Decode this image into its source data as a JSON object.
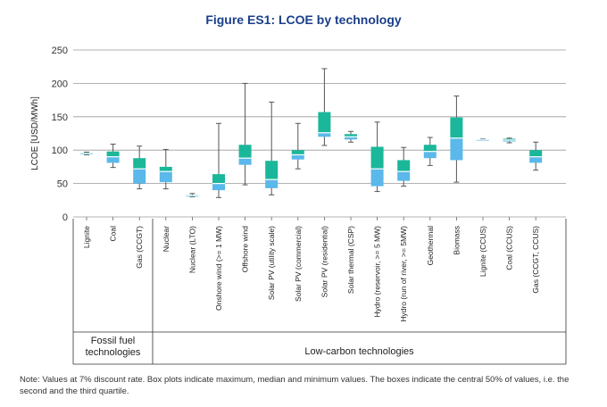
{
  "chart_data": {
    "type": "box",
    "title": "Figure ES1: LCOE by technology",
    "ylabel": "LCOE [USD/MWh]",
    "ylim": [
      0,
      250
    ],
    "yticks": [
      0,
      50,
      100,
      150,
      200,
      250
    ],
    "grid": true,
    "colors": {
      "upper_quartile": "#1bb79a",
      "lower_quartile": "#5ab8ea",
      "median_line": "#ffffff",
      "whisker": "#555555",
      "title": "#1b3f8a"
    },
    "categories": [
      "Lignite",
      "Coal",
      "Gas (CCGT)",
      "Nuclear",
      "Nuclear (LTO)",
      "Onshore wind (>= 1 MW)",
      "Offshore wind",
      "Solar PV (utility scale)",
      "Solar PV (commercial)",
      "Solar PV (residential)",
      "Solar thermal (CSP)",
      "Hydro (reservoir, >= 5 MW)",
      "Hydro (run of river, >= 5MW)",
      "Geothermal",
      "Biomass",
      "Lignite (CCUS)",
      "Coal (CCUS)",
      "Gas (CCGT, CCUS)"
    ],
    "boxes": [
      {
        "min": 93,
        "q1": 94,
        "median": 95,
        "q3": 96,
        "max": 97
      },
      {
        "min": 74,
        "q1": 81,
        "median": 90,
        "q3": 98,
        "max": 109
      },
      {
        "min": 42,
        "q1": 50,
        "median": 72,
        "q3": 88,
        "max": 106
      },
      {
        "min": 42,
        "q1": 52,
        "median": 68,
        "q3": 75,
        "max": 101
      },
      {
        "min": 30,
        "q1": 31,
        "median": 32,
        "q3": 33,
        "max": 35
      },
      {
        "min": 29,
        "q1": 40,
        "median": 50,
        "q3": 64,
        "max": 140
      },
      {
        "min": 48,
        "q1": 78,
        "median": 88,
        "q3": 108,
        "max": 200
      },
      {
        "min": 33,
        "q1": 43,
        "median": 56,
        "q3": 84,
        "max": 172
      },
      {
        "min": 72,
        "q1": 86,
        "median": 93,
        "q3": 100,
        "max": 140
      },
      {
        "min": 107,
        "q1": 120,
        "median": 126,
        "q3": 157,
        "max": 222
      },
      {
        "min": 112,
        "q1": 116,
        "median": 120,
        "q3": 124,
        "max": 128
      },
      {
        "min": 38,
        "q1": 46,
        "median": 72,
        "q3": 105,
        "max": 142
      },
      {
        "min": 46,
        "q1": 54,
        "median": 68,
        "q3": 85,
        "max": 104
      },
      {
        "min": 77,
        "q1": 88,
        "median": 98,
        "q3": 108,
        "max": 119
      },
      {
        "min": 52,
        "q1": 85,
        "median": 118,
        "q3": 149,
        "max": 181
      },
      {
        "min": 115,
        "q1": 115,
        "median": 116,
        "q3": 116,
        "max": 117
      },
      {
        "min": 111,
        "q1": 113,
        "median": 115,
        "q3": 117,
        "max": 118
      },
      {
        "min": 70,
        "q1": 81,
        "median": 90,
        "q3": 100,
        "max": 112
      }
    ],
    "groups": [
      {
        "label": "Fossil fuel technologies",
        "lines": [
          "Fossil fuel",
          "technologies"
        ],
        "start": 0,
        "end": 2
      },
      {
        "label": "Low-carbon technologies",
        "lines": [
          "Low-carbon technologies"
        ],
        "start": 3,
        "end": 17
      }
    ]
  },
  "note": "Note: Values at 7% discount rate. Box plots indicate maximum, median and minimum values. The boxes indicate the central 50% of values, i.e. the second and the third quartile."
}
